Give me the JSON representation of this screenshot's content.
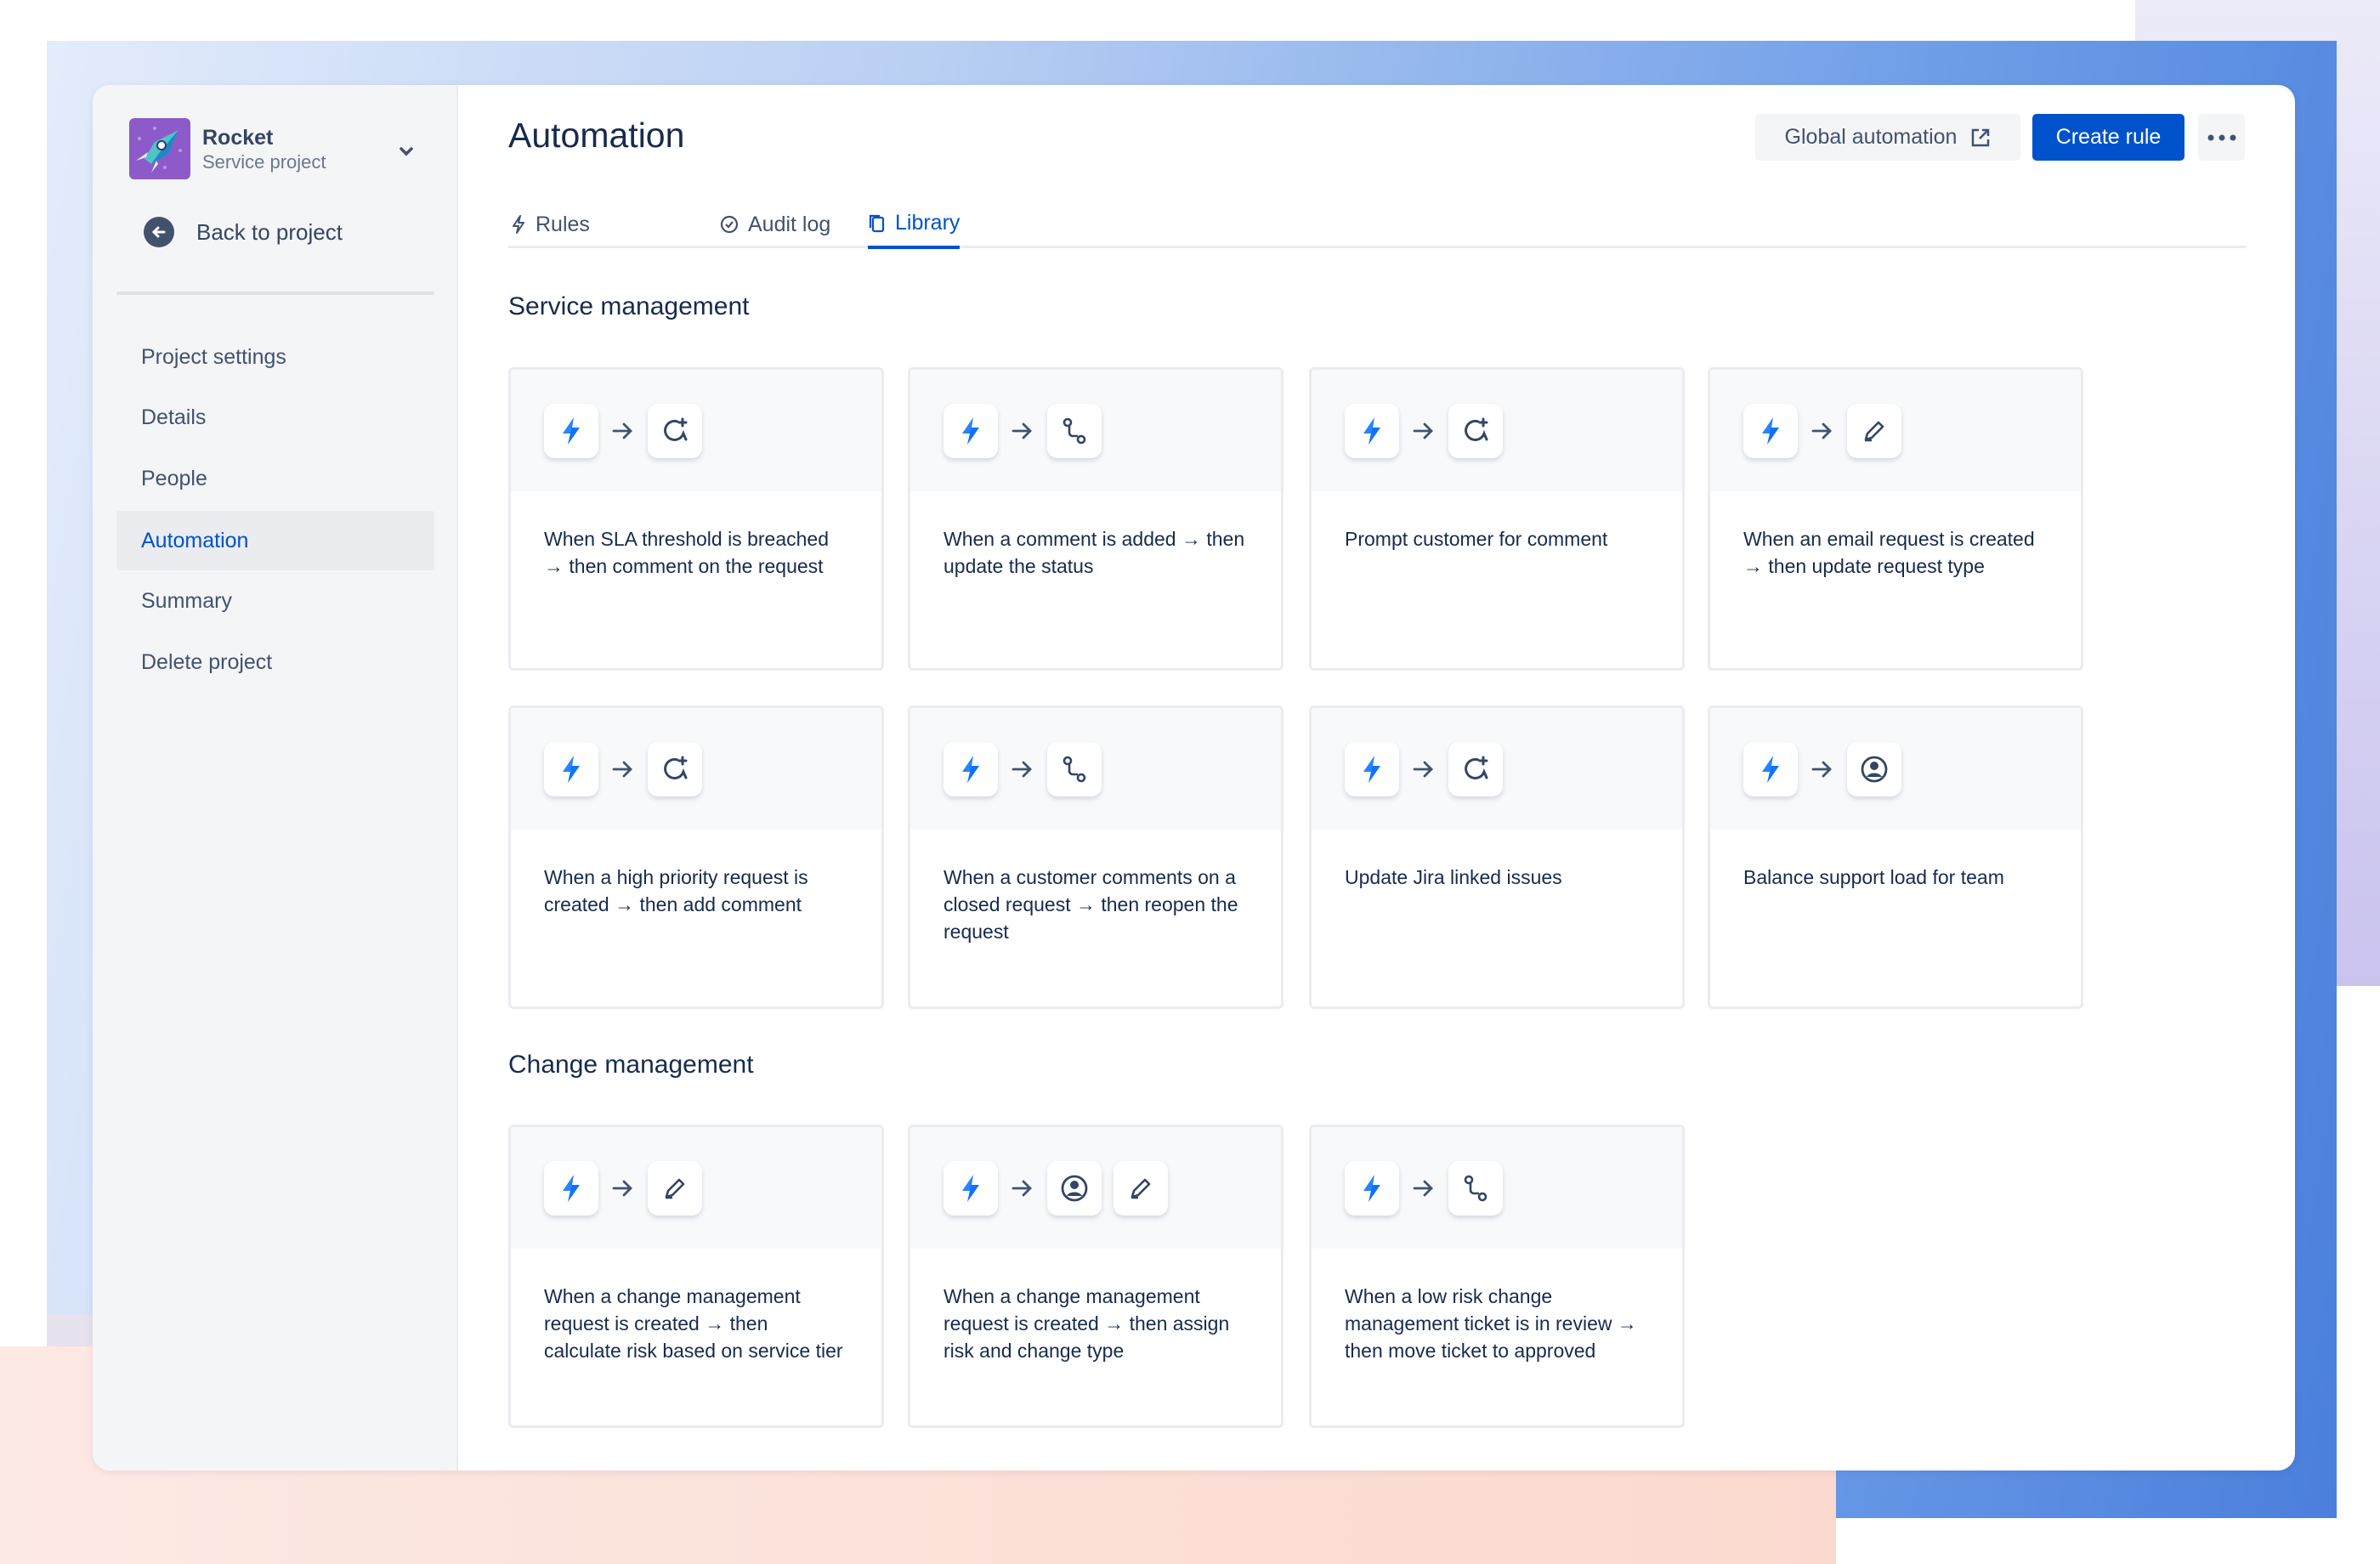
{
  "project": {
    "name": "Rocket",
    "type": "Service project",
    "back_label": "Back to project"
  },
  "sidebar": {
    "items": [
      {
        "label": "Project settings",
        "selected": false
      },
      {
        "label": "Details",
        "selected": false
      },
      {
        "label": "People",
        "selected": false
      },
      {
        "label": "Automation",
        "selected": true
      },
      {
        "label": "Summary",
        "selected": false
      },
      {
        "label": "Delete project",
        "selected": false
      }
    ]
  },
  "header": {
    "title": "Automation",
    "global_label": "Global automation",
    "create_label": "Create rule"
  },
  "tabs": [
    {
      "label": "Rules",
      "icon": "bolt-icon"
    },
    {
      "label": "Audit log",
      "icon": "check-circle-icon"
    },
    {
      "label": "Library",
      "icon": "copy-icon",
      "selected": true
    }
  ],
  "sections": [
    {
      "title": "Service management",
      "rules": [
        {
          "text": "When SLA threshold is breached → then comment on the request",
          "actions": [
            "comment"
          ]
        },
        {
          "text": "When a comment is added → then update the status",
          "actions": [
            "transition"
          ]
        },
        {
          "text": "Prompt customer for comment",
          "actions": [
            "comment"
          ]
        },
        {
          "text": "When an email request is created → then update request type",
          "actions": [
            "edit"
          ]
        },
        {
          "text": "When a high priority request is created → then add comment",
          "actions": [
            "comment"
          ]
        },
        {
          "text": "When a customer comments on a closed request → then reopen the request",
          "actions": [
            "transition"
          ]
        },
        {
          "text": "Update Jira linked issues",
          "actions": [
            "comment"
          ]
        },
        {
          "text": "Balance support load for team",
          "actions": [
            "user"
          ]
        }
      ]
    },
    {
      "title": "Change management",
      "rules": [
        {
          "text": "When a change management request is created → then calculate risk based on service tier",
          "actions": [
            "edit"
          ]
        },
        {
          "text": "When a change management request is created → then assign risk and change type",
          "actions": [
            "user",
            "edit"
          ]
        },
        {
          "text": "When a low risk change management ticket is in review → then move ticket to approved",
          "actions": [
            "transition"
          ]
        }
      ]
    }
  ],
  "colors": {
    "accent": "#0052cc",
    "bolt": "#2684ff",
    "sidebar_bg": "#f4f5f7"
  }
}
